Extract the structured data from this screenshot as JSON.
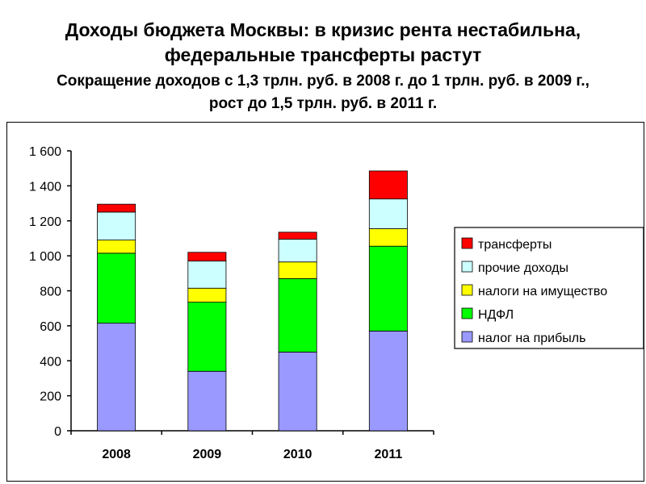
{
  "header": {
    "title_line1": "Доходы бюджета Москвы: в кризис рента нестабильна,",
    "title_line2": "федеральные трансферты растут",
    "subtitle_line1": "Сокращение доходов с 1,3 трлн. руб. в 2008 г. до 1 трлн. руб. в 2009 г.,",
    "subtitle_line2": "рост до 1,5 трлн. руб. в 2011 г."
  },
  "chart_data": {
    "type": "bar",
    "stacked": true,
    "categories": [
      "2008",
      "2009",
      "2010",
      "2011"
    ],
    "ylim": [
      0,
      1600
    ],
    "yticks": [
      0,
      200,
      400,
      600,
      800,
      1000,
      1200,
      1400,
      1600
    ],
    "ytick_labels": [
      "0",
      "200",
      "400",
      "600",
      "800",
      "1 000",
      "1 200",
      "1 400",
      "1 600"
    ],
    "grid": false,
    "legend_position": "right",
    "series": [
      {
        "name": "налог на прибыль",
        "color": "#9999ff",
        "values": [
          615,
          340,
          450,
          570
        ]
      },
      {
        "name": "НДФЛ",
        "color": "#00ff00",
        "values": [
          400,
          395,
          420,
          485
        ]
      },
      {
        "name": "налоги на имущество",
        "color": "#ffff00",
        "values": [
          75,
          80,
          95,
          100
        ]
      },
      {
        "name": "прочие доходы",
        "color": "#ccffff",
        "values": [
          160,
          155,
          130,
          170
        ]
      },
      {
        "name": "трансферты",
        "color": "#ff0000",
        "values": [
          45,
          50,
          40,
          160
        ]
      }
    ]
  }
}
